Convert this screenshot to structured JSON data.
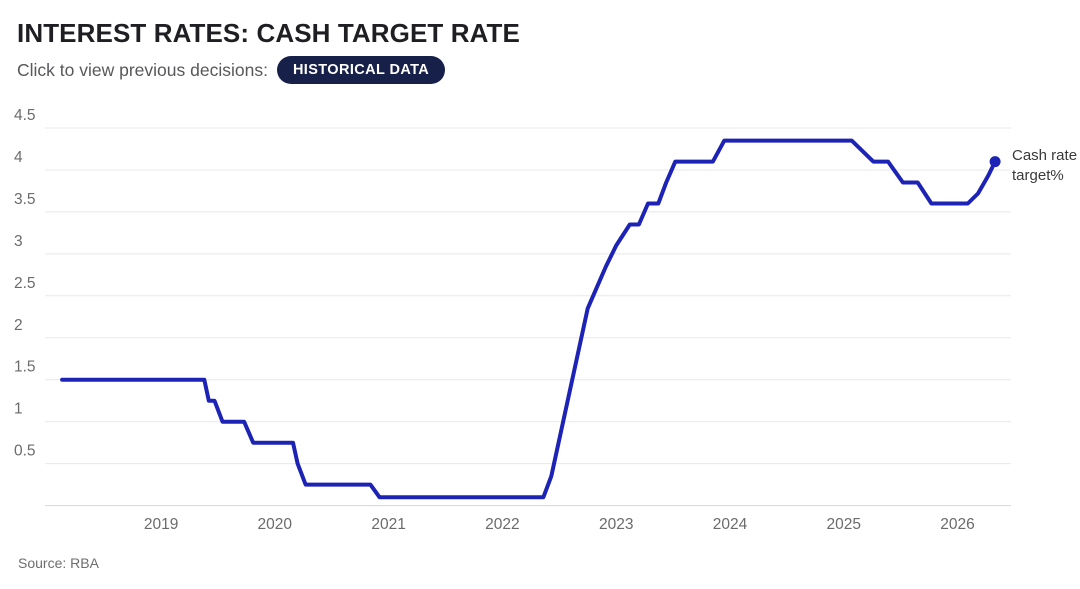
{
  "header": {
    "title": "INTEREST RATES: CASH TARGET RATE",
    "subtitle": "Click to view previous decisions:",
    "button_label": "HISTORICAL DATA",
    "button_bg": "#172049",
    "button_text_color": "#ffffff"
  },
  "footer": {
    "source": "Source: RBA"
  },
  "chart_data": {
    "type": "line",
    "title": "INTEREST RATES: CASH TARGET RATE",
    "xlabel": "",
    "ylabel": "",
    "x_ticks": [
      2019,
      2020,
      2021,
      2022,
      2023,
      2024,
      2025,
      2026
    ],
    "y_ticks": [
      0.5,
      1,
      1.5,
      2,
      2.5,
      3,
      3.5,
      4,
      4.5
    ],
    "xlim": [
      2017.98,
      2026.47
    ],
    "ylim": [
      0,
      4.5
    ],
    "grid": true,
    "line_color": "#1d23b4",
    "grid_color": "#e8e8e8",
    "axis_color": "#d6d6d6",
    "tick_color": "#6b6b6b",
    "end_dot": true,
    "end_label": "Cash rate target%",
    "series": [
      {
        "name": "Cash rate target%",
        "points": [
          [
            2018.13,
            1.5
          ],
          [
            2019.38,
            1.5
          ],
          [
            2019.42,
            1.25
          ],
          [
            2019.47,
            1.25
          ],
          [
            2019.54,
            1.0
          ],
          [
            2019.73,
            1.0
          ],
          [
            2019.81,
            0.75
          ],
          [
            2020.16,
            0.75
          ],
          [
            2020.2,
            0.5
          ],
          [
            2020.27,
            0.25
          ],
          [
            2020.84,
            0.25
          ],
          [
            2020.92,
            0.1
          ],
          [
            2022.36,
            0.1
          ],
          [
            2022.43,
            0.35
          ],
          [
            2022.51,
            0.85
          ],
          [
            2022.59,
            1.35
          ],
          [
            2022.67,
            1.85
          ],
          [
            2022.75,
            2.35
          ],
          [
            2022.83,
            2.6
          ],
          [
            2022.91,
            2.85
          ],
          [
            2023.0,
            3.1
          ],
          [
            2023.12,
            3.35
          ],
          [
            2023.2,
            3.35
          ],
          [
            2023.28,
            3.6
          ],
          [
            2023.37,
            3.6
          ],
          [
            2023.44,
            3.85
          ],
          [
            2023.52,
            4.1
          ],
          [
            2023.85,
            4.1
          ],
          [
            2023.95,
            4.35
          ],
          [
            2025.07,
            4.35
          ],
          [
            2025.26,
            4.1
          ],
          [
            2025.39,
            4.1
          ],
          [
            2025.52,
            3.85
          ],
          [
            2025.65,
            3.85
          ],
          [
            2025.77,
            3.6
          ],
          [
            2026.09,
            3.6
          ],
          [
            2026.18,
            3.72
          ],
          [
            2026.27,
            3.93
          ],
          [
            2026.33,
            4.1
          ]
        ]
      }
    ]
  }
}
